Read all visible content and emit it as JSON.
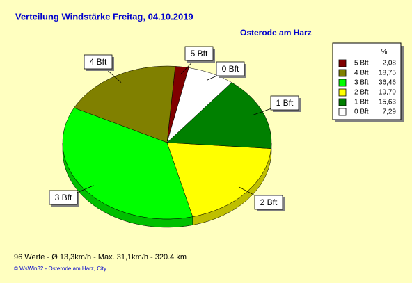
{
  "chart_data": {
    "type": "pie",
    "title": "Verteilung Windstärke  Freitag, 04.10.2019",
    "subtitle": "Osterode am Harz",
    "categories": [
      "5 Bft",
      "4 Bft",
      "3 Bft",
      "2 Bft",
      "1 Bft",
      "0 Bft"
    ],
    "values": [
      2.08,
      18.75,
      36.46,
      19.79,
      15.63,
      7.29
    ],
    "value_labels": [
      "2,08",
      "18,75",
      "36,46",
      "19,79",
      "15,63",
      "7,29"
    ],
    "colors": [
      "#800000",
      "#808000",
      "#00ff00",
      "#ffff00",
      "#008000",
      "#ffffff"
    ],
    "legend_header": "%",
    "footer": "96 Werte   -   Ø 13,3km/h  -  Max. 31,1km/h   -   320.4 km",
    "copyright": "© WsWin32  -  Osterode am Harz, City"
  }
}
